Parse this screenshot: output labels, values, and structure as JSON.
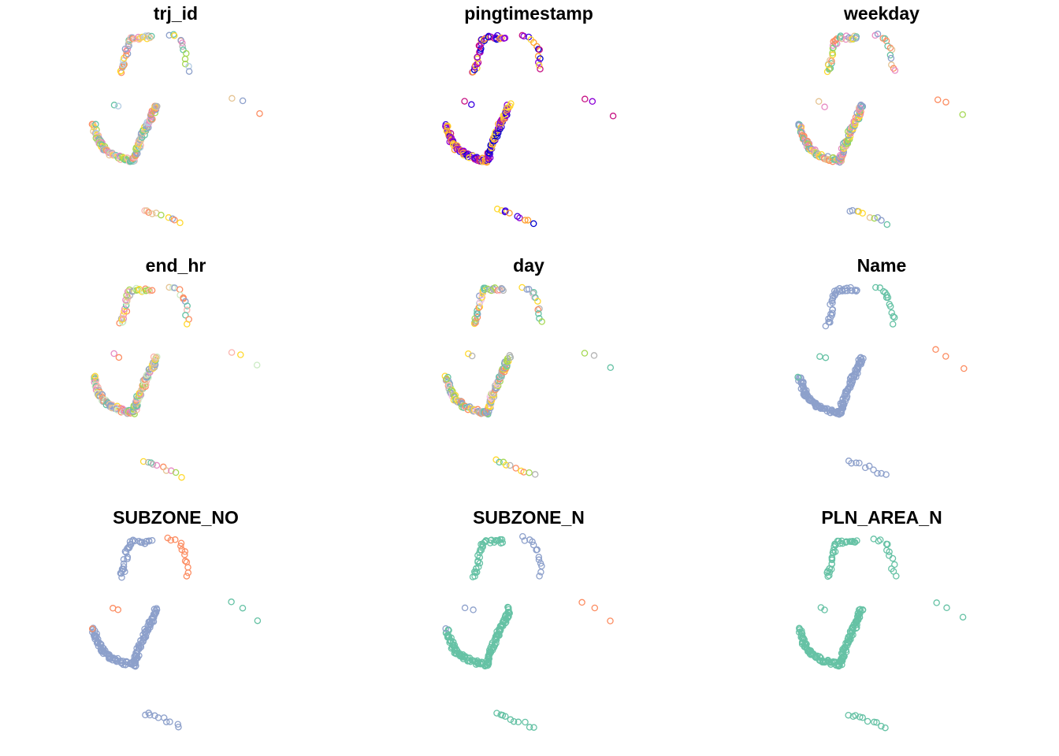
{
  "chart_data": {
    "type": "scatter",
    "layout": "3x3 small multiples",
    "grid": false,
    "axes_shown": false,
    "legend": "none",
    "marker": "open circle",
    "panels": [
      {
        "title": "trj_id",
        "color_mode": "categorical",
        "palette": [
          "#66C2A5",
          "#FC8D62",
          "#8DA0CB",
          "#E78AC3",
          "#A6D854",
          "#FFD92F",
          "#E5C494",
          "#B3B3B3",
          "#FBB4AE",
          "#B3CDE3"
        ]
      },
      {
        "title": "pingtimestamp",
        "color_mode": "sequential",
        "palette": [
          "#FFD92F",
          "#FF9F2F",
          "#C71585",
          "#8B00D6",
          "#3A00E0",
          "#0000CD"
        ]
      },
      {
        "title": "weekday",
        "color_mode": "categorical",
        "palette": [
          "#FC8D62",
          "#66C2A5",
          "#8DA0CB",
          "#E78AC3",
          "#A6D854",
          "#FFD92F",
          "#E5C494"
        ]
      },
      {
        "title": "end_hr",
        "color_mode": "categorical",
        "palette": [
          "#66C2A5",
          "#FC8D62",
          "#8DA0CB",
          "#E78AC3",
          "#A6D854",
          "#FFD92F",
          "#E5C494",
          "#B3B3B3",
          "#FBB4AE",
          "#CCEBC5"
        ]
      },
      {
        "title": "day",
        "color_mode": "categorical",
        "palette": [
          "#F4C2E0",
          "#66C2A5",
          "#FC8D62",
          "#8DA0CB",
          "#A6D854",
          "#FFD92F",
          "#B3B3B3"
        ]
      },
      {
        "title": "Name",
        "color_mode": "categorical",
        "palette": [
          "#8DA0CB",
          "#66C2A5",
          "#FC8D62"
        ]
      },
      {
        "title": "SUBZONE_NO",
        "color_mode": "categorical",
        "palette": [
          "#8DA0CB",
          "#FC8D62",
          "#66C2A5"
        ]
      },
      {
        "title": "SUBZONE_N",
        "color_mode": "categorical",
        "palette": [
          "#66C2A5",
          "#8DA0CB",
          "#FC8D62"
        ]
      },
      {
        "title": "PLN_AREA_N",
        "color_mode": "categorical",
        "palette": [
          "#66C2A5"
        ]
      }
    ]
  }
}
